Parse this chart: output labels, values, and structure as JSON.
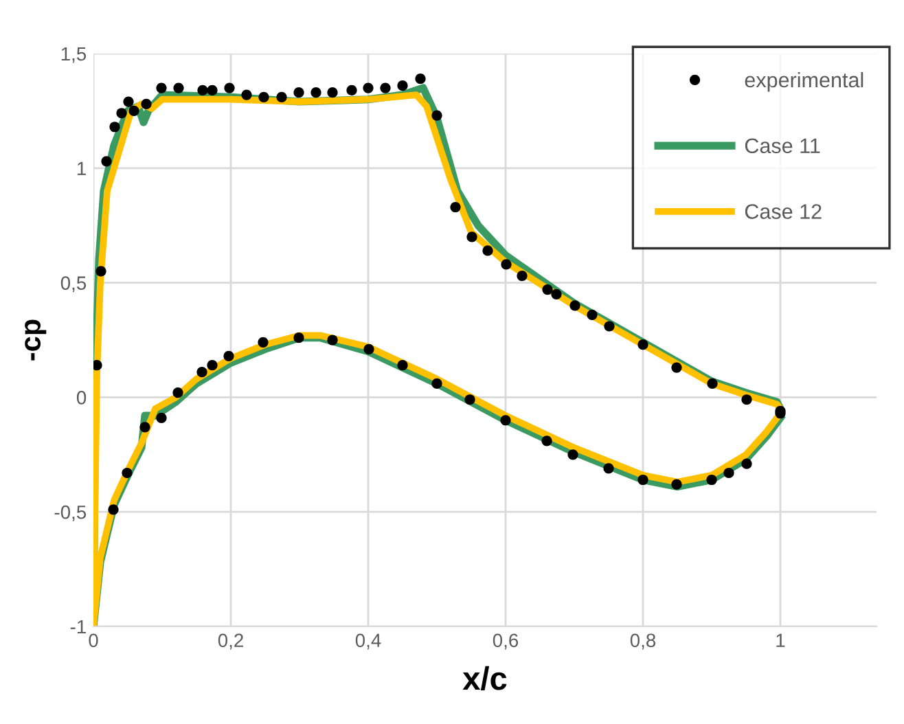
{
  "chart_data": {
    "type": "scatter",
    "xlabel": "x/c",
    "ylabel": "-cp",
    "xlim": [
      0,
      1.14
    ],
    "ylim": [
      -1,
      1.5
    ],
    "xticks": [
      0,
      {
        "value": 0.2,
        "label": "0,2"
      },
      {
        "value": 0.4,
        "label": "0,4"
      },
      {
        "value": 0.6,
        "label": "0,6"
      },
      {
        "value": 0.8,
        "label": "0,8"
      },
      1
    ],
    "yticks": [
      -1,
      {
        "value": -0.5,
        "label": "-0,5"
      },
      0,
      {
        "value": 0.5,
        "label": "0,5"
      },
      1,
      {
        "value": 1.5,
        "label": "1,5"
      }
    ],
    "grid": true,
    "legend": "top right",
    "series": [
      {
        "name": "experimental",
        "marker": "circle",
        "color": "#000000",
        "x": [
          0.005,
          0.011,
          0.019,
          0.031,
          0.041,
          0.051,
          0.059,
          0.077,
          0.099,
          0.124,
          0.159,
          0.173,
          0.198,
          0.223,
          0.248,
          0.274,
          0.299,
          0.324,
          0.348,
          0.376,
          0.4,
          0.425,
          0.45,
          0.476,
          0.5,
          0.527,
          0.551,
          0.574,
          0.601,
          0.624,
          0.661,
          0.674,
          0.701,
          0.726,
          0.751,
          0.8,
          0.849,
          0.901,
          0.951,
          1.0,
          0.029,
          0.049,
          0.075,
          0.099,
          0.123,
          0.158,
          0.173,
          0.197,
          0.247,
          0.299,
          0.348,
          0.401,
          0.45,
          0.5,
          0.548,
          0.6,
          0.66,
          0.698,
          0.75,
          0.8,
          0.849,
          0.9,
          0.925,
          0.951,
          1.0
        ],
        "values": [
          0.14,
          0.55,
          1.03,
          1.18,
          1.24,
          1.29,
          1.25,
          1.28,
          1.35,
          1.35,
          1.34,
          1.34,
          1.35,
          1.32,
          1.31,
          1.31,
          1.33,
          1.33,
          1.33,
          1.34,
          1.35,
          1.35,
          1.36,
          1.39,
          1.23,
          0.83,
          0.7,
          0.64,
          0.58,
          0.53,
          0.47,
          0.45,
          0.4,
          0.36,
          0.31,
          0.23,
          0.13,
          0.06,
          -0.01,
          -0.06,
          -0.49,
          -0.33,
          -0.13,
          -0.09,
          0.02,
          0.11,
          0.14,
          0.18,
          0.24,
          0.26,
          0.25,
          0.21,
          0.14,
          0.06,
          -0.01,
          -0.1,
          -0.19,
          -0.25,
          -0.31,
          -0.36,
          -0.38,
          -0.36,
          -0.33,
          -0.29,
          -0.07
        ]
      },
      {
        "name": "Case 11",
        "type": "line",
        "marker": "none",
        "line_style": "solid",
        "color": "#3a9a62",
        "x": [
          1.0,
          0.98,
          0.95,
          0.9,
          0.85,
          0.8,
          0.7,
          0.6,
          0.5,
          0.4,
          0.33,
          0.3,
          0.25,
          0.2,
          0.15,
          0.12,
          0.09,
          0.075,
          0.07,
          0.05,
          0.03,
          0.01,
          0,
          0.003,
          0.008,
          0.015,
          0.03,
          0.05,
          0.065,
          0.073,
          0.08,
          0.1,
          0.2,
          0.3,
          0.4,
          0.45,
          0.48,
          0.5,
          0.53,
          0.56,
          0.6,
          0.7,
          0.8,
          0.9,
          0.95,
          0.995,
          1.0
        ],
        "values": [
          -0.09,
          -0.17,
          -0.27,
          -0.36,
          -0.39,
          -0.36,
          -0.24,
          -0.1,
          0.06,
          0.2,
          0.26,
          0.26,
          0.21,
          0.15,
          0.06,
          -0.02,
          -0.08,
          -0.08,
          -0.22,
          -0.34,
          -0.47,
          -0.72,
          -1,
          0.1,
          0.6,
          0.9,
          1.1,
          1.25,
          1.27,
          1.2,
          1.25,
          1.32,
          1.31,
          1.29,
          1.3,
          1.32,
          1.35,
          1.22,
          0.9,
          0.75,
          0.62,
          0.41,
          0.24,
          0.07,
          0.02,
          -0.02,
          -0.05
        ]
      },
      {
        "name": "Case 12",
        "type": "line",
        "marker": "none",
        "line_style": "solid",
        "color": "#ffc000",
        "x": [
          1.0,
          0.98,
          0.95,
          0.9,
          0.85,
          0.8,
          0.7,
          0.6,
          0.5,
          0.4,
          0.33,
          0.3,
          0.25,
          0.2,
          0.15,
          0.12,
          0.09,
          0.07,
          0.05,
          0.03,
          0.01,
          0,
          0.005,
          0.01,
          0.02,
          0.04,
          0.055,
          0.07,
          0.085,
          0.1,
          0.2,
          0.3,
          0.4,
          0.47,
          0.485,
          0.52,
          0.55,
          0.6,
          0.7,
          0.8,
          0.9,
          0.95,
          0.995,
          1.0
        ],
        "values": [
          -0.07,
          -0.15,
          -0.25,
          -0.34,
          -0.37,
          -0.34,
          -0.22,
          -0.08,
          0.08,
          0.22,
          0.27,
          0.27,
          0.23,
          0.17,
          0.08,
          0.0,
          -0.05,
          -0.2,
          -0.32,
          -0.45,
          -0.7,
          -1,
          0.1,
          0.5,
          0.9,
          1.1,
          1.25,
          1.28,
          1.26,
          1.3,
          1.3,
          1.29,
          1.3,
          1.32,
          1.27,
          0.95,
          0.72,
          0.59,
          0.4,
          0.23,
          0.06,
          0.01,
          -0.03,
          -0.05
        ]
      }
    ]
  }
}
